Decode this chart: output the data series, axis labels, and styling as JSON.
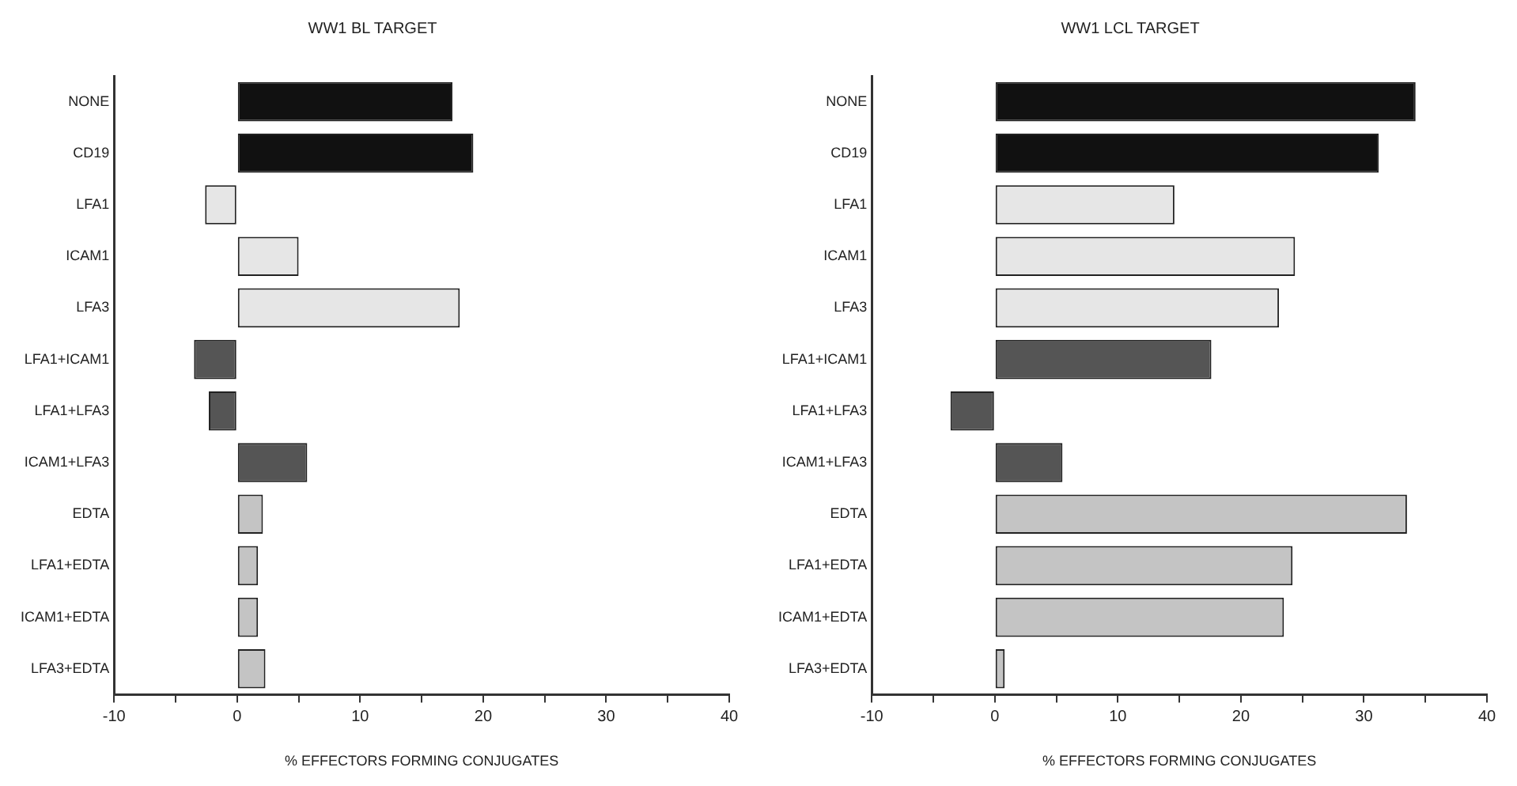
{
  "chart_data": [
    {
      "type": "bar",
      "orientation": "horizontal",
      "title": "WW1 BL TARGET",
      "xlabel": "% EFFECTORS FORMING CONJUGATES",
      "categories": [
        "NONE",
        "CD19",
        "LFA1",
        "ICAM1",
        "LFA3",
        "LFA1+ICAM1",
        "LFA1+LFA3",
        "ICAM1+LFA3",
        "EDTA",
        "LFA1+EDTA",
        "ICAM1+EDTA",
        "LFA3+EDTA"
      ],
      "values": [
        17.5,
        19.2,
        -2.6,
        5.0,
        18.1,
        -3.5,
        -2.3,
        5.7,
        2.1,
        1.7,
        1.7,
        2.3
      ],
      "colors": [
        "#111111",
        "#111111",
        "#e6e6e6",
        "#e6e6e6",
        "#e6e6e6",
        "#555555",
        "#555555",
        "#555555",
        "#c4c4c4",
        "#c4c4c4",
        "#c4c4c4",
        "#c4c4c4"
      ],
      "xlim": [
        -10,
        40
      ],
      "xticks": [
        -10,
        {
          "value": -5,
          "label": null
        },
        0,
        {
          "value": 5,
          "label": null
        },
        10,
        {
          "value": 15,
          "label": null
        },
        20,
        {
          "value": 25,
          "label": null
        },
        30,
        {
          "value": 35,
          "label": null
        },
        40
      ],
      "grid": false,
      "legend": false
    },
    {
      "type": "bar",
      "orientation": "horizontal",
      "title": "WW1 LCL TARGET",
      "xlabel": "% EFFECTORS FORMING CONJUGATES",
      "categories": [
        "NONE",
        "CD19",
        "LFA1",
        "ICAM1",
        "LFA3",
        "LFA1+ICAM1",
        "LFA1+LFA3",
        "ICAM1+LFA3",
        "EDTA",
        "LFA1+EDTA",
        "ICAM1+EDTA",
        "LFA3+EDTA"
      ],
      "values": [
        34.2,
        31.2,
        14.6,
        24.4,
        23.1,
        17.6,
        -3.6,
        5.5,
        33.5,
        24.2,
        23.5,
        0.8
      ],
      "colors": [
        "#111111",
        "#111111",
        "#e6e6e6",
        "#e6e6e6",
        "#e6e6e6",
        "#555555",
        "#555555",
        "#555555",
        "#c4c4c4",
        "#c4c4c4",
        "#c4c4c4",
        "#c4c4c4"
      ],
      "xlim": [
        -10,
        40
      ],
      "xticks": [
        -10,
        {
          "value": -5,
          "label": null
        },
        0,
        {
          "value": 5,
          "label": null
        },
        10,
        {
          "value": 15,
          "label": null
        },
        20,
        {
          "value": 25,
          "label": null
        },
        30,
        {
          "value": 35,
          "label": null
        },
        40
      ],
      "grid": false,
      "legend": false
    }
  ]
}
